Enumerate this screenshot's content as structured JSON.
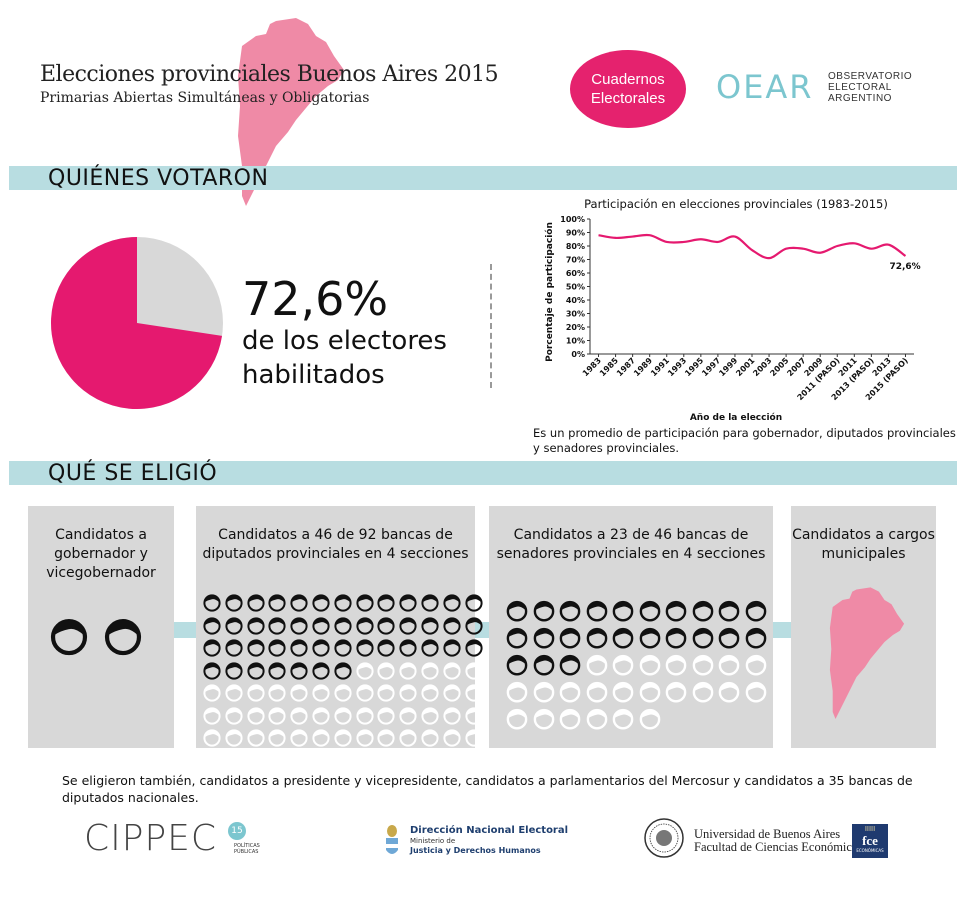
{
  "header": {
    "title": "Elecciones provinciales Buenos Aires 2015",
    "subtitle": "Primarias Abiertas Simultáneas y Obligatorias",
    "badge": "Cuadernos Electorales",
    "oear_logo": "OEAR",
    "oear_lines": [
      "OBSERVATORIO",
      "ELECTORAL",
      "ARGENTINO"
    ]
  },
  "sections": {
    "quienes": "QUIÉNES VOTARON",
    "que": "QUÉ SE ELIGIÓ"
  },
  "turnout": {
    "value_label": "72,6%",
    "label_line1": "de los electores",
    "label_line2": "habilitados",
    "fraction": 0.726,
    "voted_color": "#e5196f",
    "rest_color": "#d8d8d8"
  },
  "chart_data": {
    "type": "line",
    "title": "Participación en elecciones provinciales (1983-2015)",
    "xlabel": "Año de la elección",
    "ylabel": "Porcentaje de participación",
    "ylim": [
      0,
      100
    ],
    "y_ticks": [
      "0%",
      "10%",
      "20%",
      "30%",
      "40%",
      "50%",
      "60%",
      "70%",
      "80%",
      "90%",
      "100%"
    ],
    "categories": [
      "1983",
      "1985",
      "1987",
      "1989",
      "1991",
      "1993",
      "1995",
      "1997",
      "1999",
      "2001",
      "2003",
      "2005",
      "2007",
      "2009",
      "2011 (PASO)",
      "2011",
      "2013 (PASO)",
      "2013",
      "2015 (PASO)"
    ],
    "series": [
      {
        "name": "Participación",
        "values": [
          88,
          86,
          87,
          88,
          83,
          83,
          85,
          83,
          87,
          77,
          71,
          78,
          78,
          75,
          80,
          82,
          78,
          81,
          72.6
        ]
      }
    ],
    "end_label": "72,6%",
    "line_color": "#e5196f"
  },
  "chart_note": "Es un promedio de participación para gobernador, diputados provinciales y senadores provinciales.",
  "boxes": [
    {
      "title": "Candidatos a gobernador y vicegobernador",
      "filled": 2,
      "empty": 0
    },
    {
      "title": "Candidatos a 46 de 92 bancas de diputados provinciales en 4 secciones",
      "filled": 46,
      "empty": 46
    },
    {
      "title": "Candidatos a 23 de 46 bancas de senadores provinciales en 4 secciones",
      "filled": 23,
      "empty": 23
    },
    {
      "title": "Candidatos a cargos municipales"
    }
  ],
  "footer_note": "Se eligieron también, candidatos a presidente y vicepresidente, candidatos a parlamentarios del Mercosur y candidatos a 35 bancas de diputados nacionales.",
  "logos": {
    "cippec": "CIPPEC",
    "cippec_badge": "15",
    "cippec_sub": [
      "POLÍTICAS",
      "PÚBLICAS"
    ],
    "dne_title": "Dirección Nacional Electoral",
    "dne_sub1": "Ministerio de",
    "dne_sub2": "Justicia y Derechos Humanos",
    "uba_line1": "Universidad de Buenos Aires",
    "uba_line2": "Facultad de Ciencias Económicas",
    "fce_top": "IIIII",
    "fce_main": "fce",
    "fce_sub": "ECONÓMICAS"
  }
}
